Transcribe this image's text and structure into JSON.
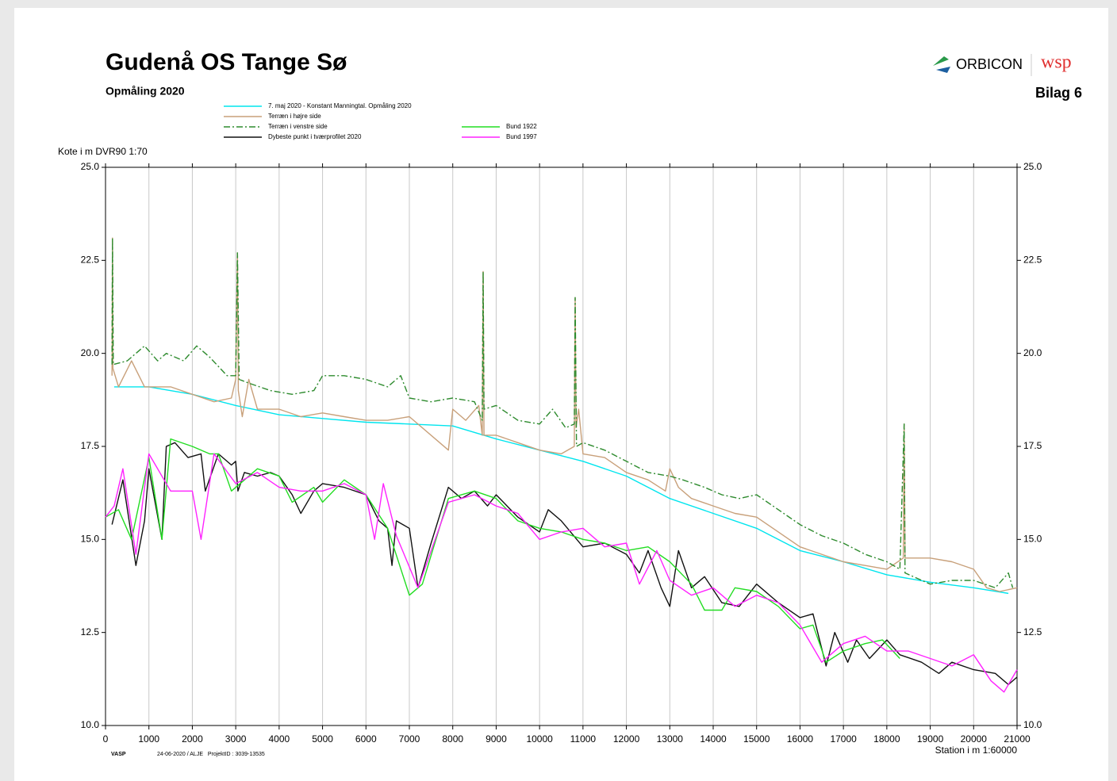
{
  "header": {
    "title": "Gudenå OS Tange Sø",
    "subtitle": "Opmåling 2020",
    "logo_left": "ORBICON",
    "logo_right": "wsp",
    "appendix": "Bilag 6"
  },
  "footer": {
    "software": "VASP",
    "info": "24-06-2020 / ALJE   ProjektID : 3039-13535"
  },
  "chart_data": {
    "type": "line",
    "y_label": "Kote i m DVR90 1:70",
    "x_label": "Station i m  1:60000",
    "grid": "x",
    "xlim": [
      0,
      21000
    ],
    "ylim": [
      10,
      25
    ],
    "xticks": [
      0,
      1000,
      2000,
      3000,
      4000,
      5000,
      6000,
      7000,
      8000,
      9000,
      10000,
      11000,
      12000,
      13000,
      14000,
      15000,
      16000,
      17000,
      18000,
      19000,
      20000,
      21000
    ],
    "yticks": [
      {
        "value": 10,
        "label": "10.0"
      },
      12.5,
      {
        "value": 15,
        "label": "15.0"
      },
      17.5,
      {
        "value": 20,
        "label": "20.0"
      },
      22.5,
      {
        "value": 25,
        "label": "25.0"
      }
    ],
    "series": [
      {
        "name": "7. maj 2020 - Konstant Manningtal. Opmåling 2020",
        "color": "#00e5ee",
        "dash": "solid",
        "x": [
          200,
          1000,
          2000,
          3000,
          4000,
          5000,
          6000,
          7000,
          8000,
          9000,
          10000,
          11000,
          12000,
          13000,
          14000,
          15000,
          16000,
          17000,
          18000,
          19000,
          20000,
          20800
        ],
        "values": [
          19.1,
          19.1,
          18.9,
          18.6,
          18.35,
          18.25,
          18.15,
          18.1,
          18.05,
          17.7,
          17.4,
          17.1,
          16.7,
          16.1,
          15.7,
          15.3,
          14.7,
          14.4,
          14.05,
          13.85,
          13.7,
          13.55
        ]
      },
      {
        "name": "Terræn i højre side",
        "color": "#c8a07a",
        "dash": "solid",
        "x": [
          150,
          160,
          170,
          300,
          600,
          900,
          1500,
          2000,
          2500,
          2900,
          3000,
          3040,
          3060,
          3150,
          3300,
          3500,
          4000,
          4500,
          5000,
          5500,
          6000,
          6500,
          7000,
          7900,
          8000,
          8300,
          8600,
          8680,
          8700,
          8720,
          9000,
          9500,
          10000,
          10500,
          10800,
          10820,
          10840,
          10900,
          11000,
          11500,
          12000,
          12500,
          12900,
          13000,
          13200,
          13500,
          14000,
          14500,
          15000,
          15500,
          16000,
          16500,
          17000,
          17500,
          18000,
          18380,
          18400,
          18420,
          19000,
          19500,
          20000,
          20300,
          20600,
          21000
        ],
        "values": [
          19.4,
          23.1,
          19.6,
          19.1,
          19.8,
          19.1,
          19.1,
          18.9,
          18.7,
          18.8,
          19.3,
          22.7,
          19.0,
          18.3,
          19.3,
          18.5,
          18.5,
          18.3,
          18.4,
          18.3,
          18.2,
          18.2,
          18.3,
          17.4,
          18.5,
          18.2,
          18.6,
          17.8,
          22.2,
          17.8,
          17.8,
          17.6,
          17.4,
          17.3,
          17.5,
          21.5,
          18.0,
          18.5,
          17.3,
          17.2,
          16.8,
          16.6,
          16.3,
          16.9,
          16.4,
          16.1,
          15.9,
          15.7,
          15.6,
          15.2,
          14.8,
          14.6,
          14.4,
          14.3,
          14.2,
          14.5,
          18.1,
          14.5,
          14.5,
          14.4,
          14.2,
          13.7,
          13.6,
          13.7
        ]
      },
      {
        "name": "Terræn i venstre side",
        "color": "#2e8b2e",
        "dash": "dash-dot",
        "x": [
          150,
          160,
          180,
          500,
          900,
          1200,
          1400,
          1800,
          2100,
          2400,
          2800,
          3000,
          3040,
          3080,
          3300,
          3800,
          4300,
          4800,
          5000,
          5500,
          6000,
          6500,
          6800,
          7000,
          7500,
          8000,
          8500,
          8680,
          8700,
          8720,
          9000,
          9500,
          10000,
          10300,
          10600,
          10800,
          10820,
          10850,
          11000,
          11500,
          12000,
          12500,
          13000,
          13300,
          13800,
          14200,
          14600,
          15000,
          15500,
          16000,
          16500,
          17000,
          17500,
          18000,
          18300,
          18400,
          18420,
          19000,
          19500,
          20000,
          20500,
          20800,
          20900
        ],
        "values": [
          19.7,
          23.1,
          19.7,
          19.8,
          20.2,
          19.8,
          20.0,
          19.8,
          20.2,
          19.9,
          19.4,
          19.4,
          22.7,
          19.3,
          19.2,
          19.0,
          18.9,
          19.0,
          19.4,
          19.4,
          19.3,
          19.1,
          19.4,
          18.8,
          18.7,
          18.8,
          18.7,
          18.2,
          22.2,
          18.5,
          18.6,
          18.2,
          18.1,
          18.5,
          18.0,
          18.1,
          21.5,
          17.5,
          17.6,
          17.4,
          17.1,
          16.8,
          16.7,
          16.6,
          16.4,
          16.2,
          16.1,
          16.2,
          15.8,
          15.4,
          15.1,
          14.9,
          14.6,
          14.4,
          14.2,
          18.1,
          14.1,
          13.8,
          13.9,
          13.9,
          13.7,
          14.1,
          13.7
        ]
      },
      {
        "name": "Dybeste punkt i tværprofilet 2020",
        "color": "#111111",
        "dash": "solid",
        "x": [
          150,
          400,
          700,
          900,
          1000,
          1300,
          1400,
          1600,
          1900,
          2200,
          2300,
          2600,
          2900,
          3000,
          3050,
          3200,
          3500,
          3800,
          4000,
          4300,
          4500,
          4800,
          5000,
          5500,
          6000,
          6300,
          6500,
          6600,
          6700,
          7000,
          7200,
          7500,
          7900,
          8200,
          8500,
          8800,
          9000,
          9500,
          10000,
          10200,
          10500,
          11000,
          11500,
          12000,
          12300,
          12500,
          12800,
          13000,
          13200,
          13500,
          13800,
          14200,
          14600,
          15000,
          15500,
          16000,
          16300,
          16600,
          16800,
          17100,
          17300,
          17600,
          18000,
          18300,
          18800,
          19200,
          19500,
          20000,
          20500,
          20800,
          21000
        ],
        "values": [
          15.4,
          16.6,
          14.3,
          15.5,
          16.9,
          15.0,
          17.5,
          17.6,
          17.2,
          17.3,
          16.3,
          17.3,
          17.0,
          17.1,
          16.3,
          16.8,
          16.7,
          16.8,
          16.7,
          16.2,
          15.7,
          16.3,
          16.5,
          16.4,
          16.2,
          15.5,
          15.3,
          14.3,
          15.5,
          15.3,
          13.7,
          14.9,
          16.4,
          16.1,
          16.3,
          15.9,
          16.2,
          15.6,
          15.2,
          15.8,
          15.5,
          14.8,
          14.9,
          14.6,
          14.1,
          14.7,
          13.7,
          13.2,
          14.7,
          13.7,
          14.0,
          13.3,
          13.2,
          13.8,
          13.3,
          12.9,
          13.0,
          11.6,
          12.5,
          11.7,
          12.3,
          11.8,
          12.3,
          11.9,
          11.7,
          11.4,
          11.7,
          11.5,
          11.4,
          11.1,
          11.3
        ]
      },
      {
        "name": "Bund 1922",
        "color": "#22dd22",
        "dash": "solid",
        "x": [
          0,
          300,
          600,
          1000,
          1300,
          1500,
          2000,
          2400,
          2600,
          2900,
          3500,
          4000,
          4300,
          4800,
          5000,
          5500,
          6000,
          6500,
          7000,
          7300,
          7900,
          8500,
          9000,
          9500,
          10000,
          10500,
          11000,
          11500,
          12000,
          12500,
          13000,
          13500,
          13800,
          14200,
          14500,
          15000,
          15500,
          16000,
          16300,
          16600,
          17000,
          17500,
          17900,
          18300
        ],
        "values": [
          15.6,
          15.8,
          15.0,
          17.2,
          15.0,
          17.7,
          17.5,
          17.3,
          17.3,
          16.3,
          16.9,
          16.7,
          16.0,
          16.4,
          16.0,
          16.6,
          16.2,
          15.3,
          13.5,
          13.8,
          16.1,
          16.3,
          16.1,
          15.5,
          15.3,
          15.2,
          15.0,
          14.9,
          14.7,
          14.8,
          14.4,
          13.8,
          13.1,
          13.1,
          13.7,
          13.6,
          13.2,
          12.6,
          12.7,
          11.7,
          12.0,
          12.2,
          12.3,
          11.8
        ]
      },
      {
        "name": "Bund 1997",
        "color": "#ff22ff",
        "dash": "solid",
        "x": [
          0,
          200,
          400,
          700,
          1000,
          1500,
          2000,
          2200,
          2500,
          3000,
          3500,
          4000,
          4500,
          5000,
          5500,
          6000,
          6200,
          6400,
          6700,
          7200,
          7900,
          8500,
          9000,
          9500,
          10000,
          10500,
          11000,
          11500,
          12000,
          12300,
          12700,
          13000,
          13500,
          14000,
          14500,
          15000,
          15500,
          16000,
          16500,
          17000,
          17500,
          18000,
          18500,
          19000,
          19500,
          20000,
          20400,
          20700,
          21000
        ],
        "values": [
          15.6,
          15.9,
          16.9,
          14.6,
          17.3,
          16.3,
          16.3,
          15.0,
          17.3,
          16.5,
          16.8,
          16.4,
          16.3,
          16.3,
          16.5,
          16.2,
          15.0,
          16.5,
          15.1,
          13.7,
          16.0,
          16.2,
          15.9,
          15.7,
          15.0,
          15.2,
          15.3,
          14.8,
          14.9,
          13.8,
          14.7,
          13.9,
          13.5,
          13.7,
          13.2,
          13.5,
          13.3,
          12.7,
          11.7,
          12.2,
          12.4,
          12.0,
          12.0,
          11.8,
          11.6,
          11.9,
          11.2,
          10.9,
          11.5
        ]
      }
    ]
  }
}
